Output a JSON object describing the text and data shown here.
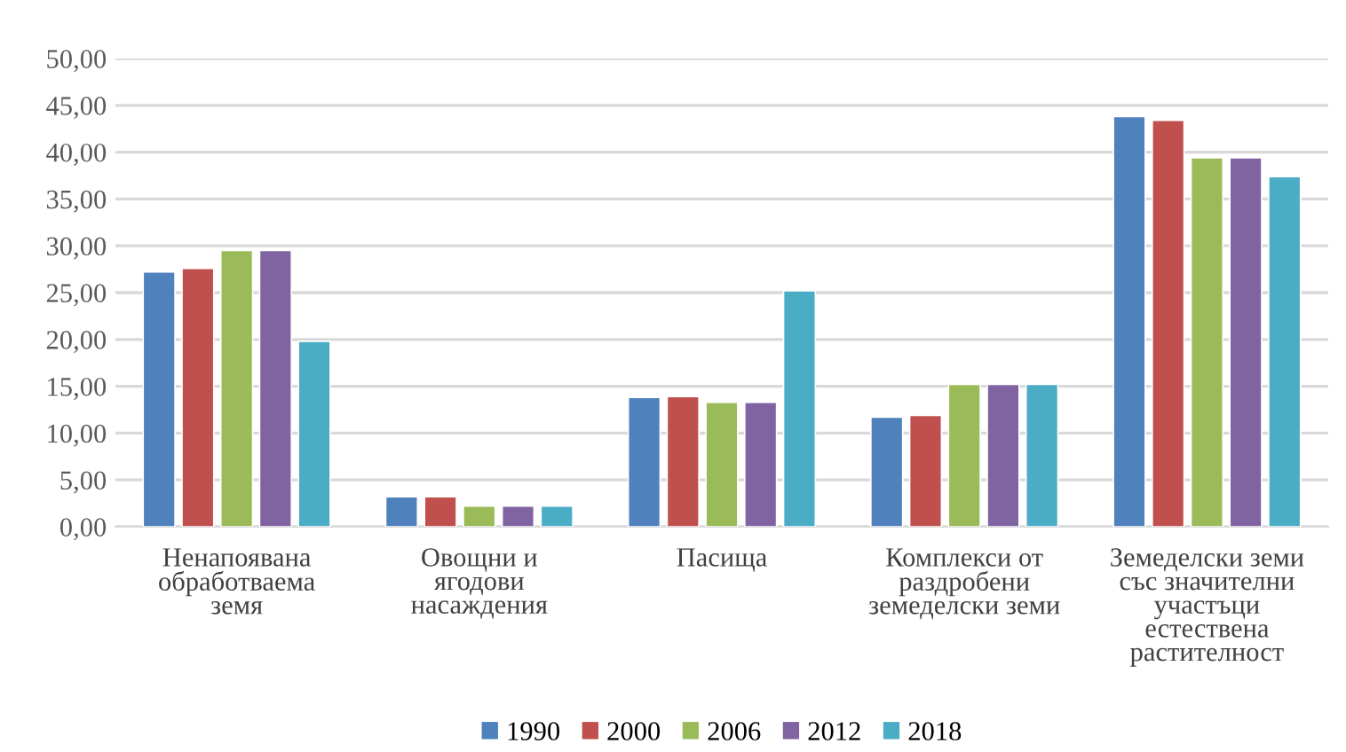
{
  "chart_data": {
    "type": "bar",
    "categories": [
      "Ненапоявана обработваема земя",
      "Овощни и ягодови насаждения",
      "Пасища",
      "Комплекси от раздробени земеделски земи",
      "Земеделски земи със значителни участъци естествена растителност"
    ],
    "series": [
      {
        "name": "1990",
        "color": "#4f81bd",
        "values": [
          27.2,
          3.2,
          13.8,
          11.7,
          43.8
        ]
      },
      {
        "name": "2000",
        "color": "#c0504d",
        "values": [
          27.6,
          3.2,
          13.9,
          11.9,
          43.4
        ]
      },
      {
        "name": "2006",
        "color": "#9bbb59",
        "values": [
          29.5,
          2.2,
          13.3,
          15.2,
          39.4
        ]
      },
      {
        "name": "2012",
        "color": "#8064a2",
        "values": [
          29.5,
          2.2,
          13.3,
          15.2,
          39.4
        ]
      },
      {
        "name": "2018",
        "color": "#4bacc6",
        "values": [
          19.8,
          2.2,
          25.2,
          15.2,
          37.4
        ]
      }
    ],
    "ylim": [
      0,
      50
    ],
    "yticks": [
      {
        "value": 0,
        "label": "0,00"
      },
      {
        "value": 5,
        "label": "5,00"
      },
      {
        "value": 10,
        "label": "10,00"
      },
      {
        "value": 15,
        "label": "15,00"
      },
      {
        "value": 20,
        "label": "20,00"
      },
      {
        "value": 25,
        "label": "25,00"
      },
      {
        "value": 30,
        "label": "30,00"
      },
      {
        "value": 35,
        "label": "35,00"
      },
      {
        "value": 40,
        "label": "40,00"
      },
      {
        "value": 45,
        "label": "45,00"
      },
      {
        "value": 50,
        "label": "50,00"
      }
    ],
    "grid": "y",
    "legend": "bottom"
  }
}
